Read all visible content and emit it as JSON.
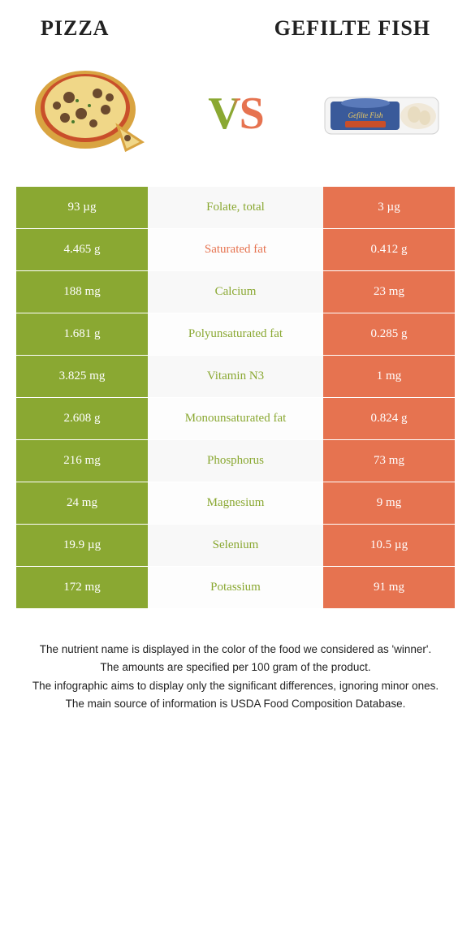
{
  "header": {
    "left_title": "PIZZA",
    "right_title": "GEFILTE FISH",
    "vs_label": "VS"
  },
  "colors": {
    "left": "#8aa832",
    "right": "#e67350",
    "mid_bg": "#f8f8f8",
    "text_dark": "#222222"
  },
  "rows": [
    {
      "left": "93 µg",
      "label": "Folate, total",
      "right": "3 µg",
      "winner": "left"
    },
    {
      "left": "4.465 g",
      "label": "Saturated fat",
      "right": "0.412 g",
      "winner": "right"
    },
    {
      "left": "188 mg",
      "label": "Calcium",
      "right": "23 mg",
      "winner": "left"
    },
    {
      "left": "1.681 g",
      "label": "Polyunsaturated fat",
      "right": "0.285 g",
      "winner": "left"
    },
    {
      "left": "3.825 mg",
      "label": "Vitamin N3",
      "right": "1 mg",
      "winner": "left"
    },
    {
      "left": "2.608 g",
      "label": "Monounsaturated fat",
      "right": "0.824 g",
      "winner": "left"
    },
    {
      "left": "216 mg",
      "label": "Phosphorus",
      "right": "73 mg",
      "winner": "left"
    },
    {
      "left": "24 mg",
      "label": "Magnesium",
      "right": "9 mg",
      "winner": "left"
    },
    {
      "left": "19.9 µg",
      "label": "Selenium",
      "right": "10.5 µg",
      "winner": "left"
    },
    {
      "left": "172 mg",
      "label": "Potassium",
      "right": "91 mg",
      "winner": "left"
    }
  ],
  "footer": {
    "line1": "The nutrient name is displayed in the color of the food we considered as 'winner'.",
    "line2": "The amounts are specified per 100 gram of the product.",
    "line3": "The infographic aims to display only the significant differences, ignoring minor ones.",
    "line4": "The main source of information is USDA Food Composition Database."
  }
}
